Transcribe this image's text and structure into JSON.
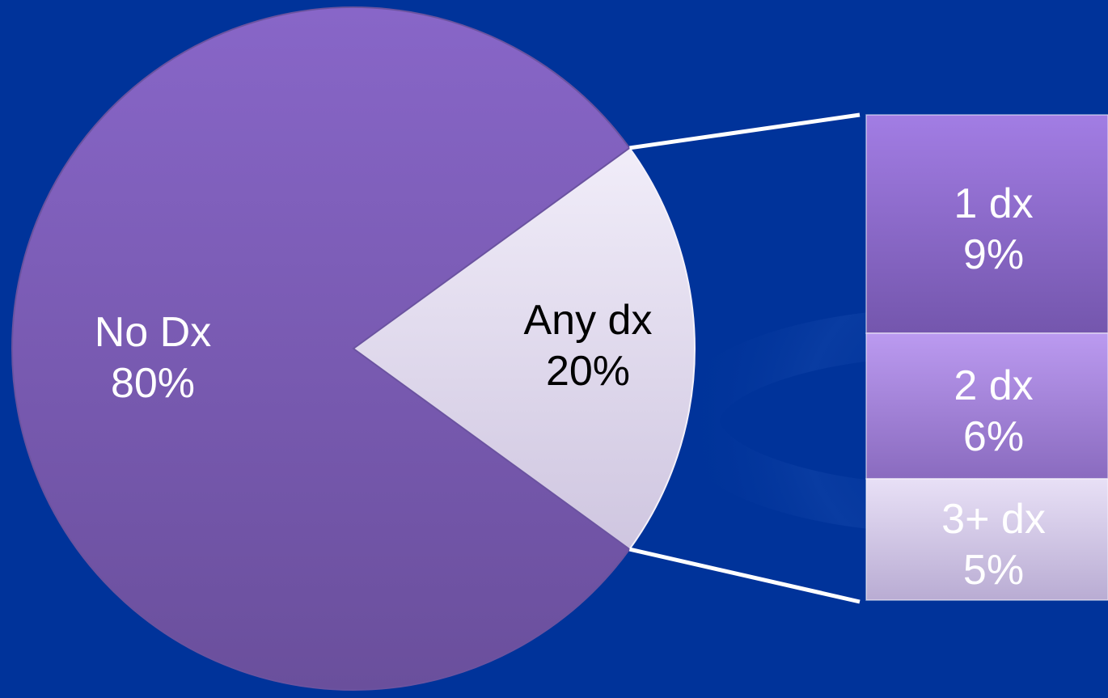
{
  "colors": {
    "background": "#00339a",
    "main_slice": "#7b5cb6",
    "highlight_slice": "#e3ddef",
    "connector": "#ffffff",
    "label_light": "#ffffff",
    "label_dark": "#000000"
  },
  "chart_data": {
    "type": "pie",
    "title": "",
    "slices": [
      {
        "label": "No Dx",
        "pct_text": "80%",
        "value": 80
      },
      {
        "label": "Any dx",
        "pct_text": "20%",
        "value": 20,
        "exploded": true
      }
    ],
    "breakdown": {
      "type": "stacked-bar",
      "of": "Any dx",
      "segments": [
        {
          "label": "1 dx",
          "pct_text": "9%",
          "value": 9
        },
        {
          "label": "2 dx",
          "pct_text": "6%",
          "value": 6
        },
        {
          "label": "3+ dx",
          "pct_text": "5%",
          "value": 5
        }
      ]
    }
  }
}
